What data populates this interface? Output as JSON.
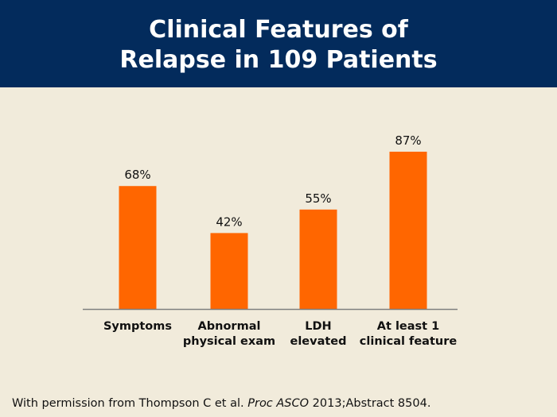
{
  "header": {
    "title_line1": "Clinical Features of",
    "title_line2": "Relapse in 109 Patients"
  },
  "chart_data": {
    "type": "bar",
    "title": "Clinical Features of Relapse in 109 Patients",
    "xlabel": "",
    "ylabel": "",
    "ylim": [
      0,
      100
    ],
    "grid": false,
    "categories": [
      [
        "Symptoms"
      ],
      [
        "Abnormal",
        "physical exam"
      ],
      [
        "LDH",
        "elevated"
      ],
      [
        "At least 1",
        "clinical feature"
      ]
    ],
    "values": [
      68,
      42,
      55,
      87
    ],
    "data_labels": [
      "68%",
      "42%",
      "55%",
      "87%"
    ],
    "bar_color": "#ff6600",
    "axis_color": "#7f7f7f"
  },
  "footer": {
    "prefix": "With permission from Thompson C et al. ",
    "journal": "Proc ASCO",
    "suffix": " 2013;Abstract 8504."
  }
}
